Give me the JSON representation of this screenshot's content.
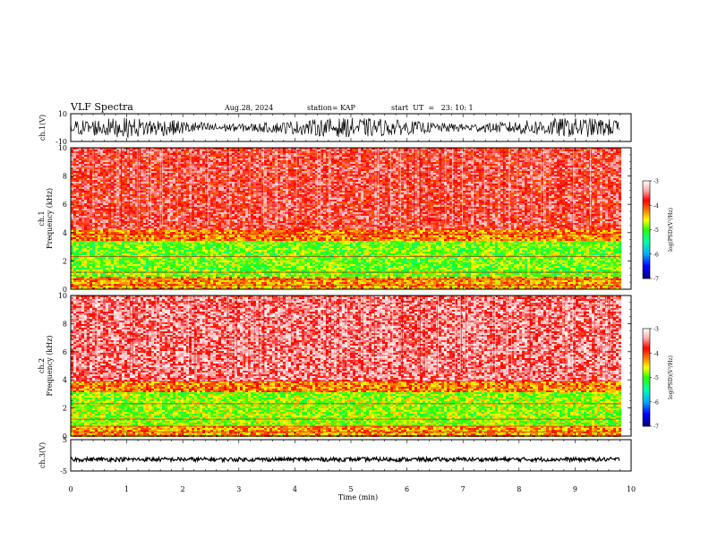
{
  "header": {
    "title": "VLF Spectra",
    "date": "Aug.28, 2024",
    "station": "station= KAP",
    "start_ut": "start  UT  =   23: 10: 1"
  },
  "chart_data": [
    {
      "name": "ch1-waveform",
      "type": "line",
      "ylabel": "ch.1(V)",
      "ylim": [
        -10,
        10
      ],
      "yticks": [
        "10",
        "-10"
      ],
      "x_range": [
        0,
        9.8
      ],
      "description_values": "noisy waveform oscillating roughly between -8 and +8 V"
    },
    {
      "name": "ch1-spectrogram",
      "type": "heatmap",
      "ylabel": "Frequency (kHz)",
      "panel_label": "ch.1",
      "ylim": [
        0,
        10
      ],
      "yticks": [
        "0",
        "2",
        "4",
        "6",
        "8",
        "10"
      ],
      "x_range": [
        0,
        9.8
      ],
      "colorbar": {
        "label": "log(PSD)(V²/Hz)",
        "range": [
          -7,
          -3
        ],
        "ticks": [
          "-3",
          "-4",
          "-5",
          "-6",
          "-7"
        ]
      },
      "bands": [
        {
          "from_khz": 0.0,
          "to_khz": 1.0,
          "level": -4.3
        },
        {
          "from_khz": 1.0,
          "to_khz": 3.5,
          "level": -4.9
        },
        {
          "from_khz": 3.5,
          "to_khz": 4.2,
          "level": -4.2
        },
        {
          "from_khz": 4.2,
          "to_khz": 10.0,
          "level": -3.7
        }
      ]
    },
    {
      "name": "ch2-spectrogram",
      "type": "heatmap",
      "ylabel": "Frequency (kHz)",
      "panel_label": "ch.2",
      "ylim": [
        0,
        10
      ],
      "yticks": [
        "0",
        "2",
        "4",
        "6",
        "8",
        "10"
      ],
      "x_range": [
        0,
        9.8
      ],
      "colorbar": {
        "label": "log(PSD)(V²/Hz)",
        "range": [
          -7,
          -3
        ],
        "ticks": [
          "-3",
          "-4",
          "-5",
          "-6",
          "-7"
        ]
      },
      "bands": [
        {
          "from_khz": 0.0,
          "to_khz": 0.8,
          "level": -4.3
        },
        {
          "from_khz": 0.8,
          "to_khz": 3.2,
          "level": -4.8
        },
        {
          "from_khz": 3.2,
          "to_khz": 4.0,
          "level": -4.2
        },
        {
          "from_khz": 4.0,
          "to_khz": 10.0,
          "level": -3.5
        }
      ]
    },
    {
      "name": "ch3-waveform",
      "type": "line",
      "ylabel": "ch.3(V)",
      "ylim": [
        -5,
        5
      ],
      "yticks": [
        "5",
        "-5"
      ],
      "x_range": [
        0,
        9.8
      ],
      "level": -1.3
    }
  ],
  "xaxis": {
    "label": "Time (min)",
    "xlim": [
      0,
      10
    ],
    "ticks": [
      "0",
      "1",
      "2",
      "3",
      "4",
      "5",
      "6",
      "7",
      "8",
      "9",
      "10"
    ]
  },
  "colors": {
    "colormap": [
      "#000080",
      "#0000ff",
      "#00ffff",
      "#00ff00",
      "#ffff00",
      "#ff0000",
      "#ffffff"
    ],
    "trace": "#000000"
  }
}
